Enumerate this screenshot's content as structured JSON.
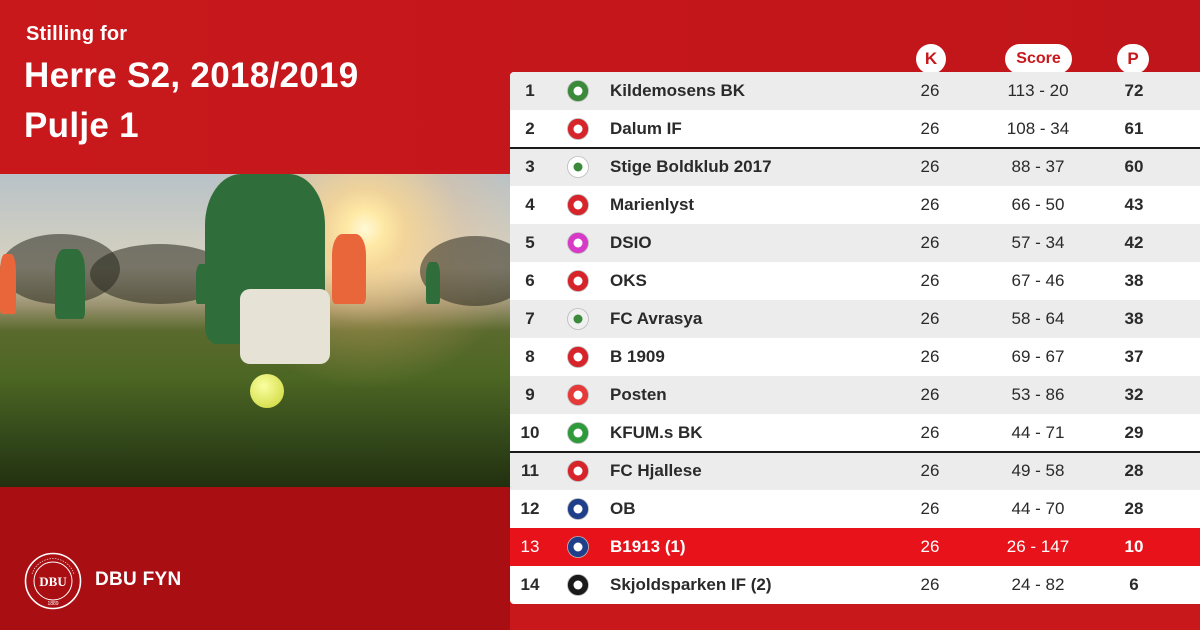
{
  "header": {
    "pre_title": "Stilling for",
    "title_line1": "Herre S2, 2018/2019",
    "title_line2": "Pulje 1"
  },
  "columns": {
    "k": "K",
    "score": "Score",
    "p": "P"
  },
  "footer": {
    "brand": "DBU FYN",
    "logo_text_top": "DANSK BOLDSPIL-UNION",
    "logo_text_mid": "DBU",
    "logo_text_bottom": "1889"
  },
  "colors": {
    "brand_red": "#c8181c",
    "relegation_row": "#e8131a",
    "alt_row": "#ececec"
  },
  "standings": [
    {
      "pos": "1",
      "team": "Kildemosens BK",
      "k": "26",
      "score": "113 - 20",
      "p": "72",
      "crest": "kildemosens-crest"
    },
    {
      "pos": "2",
      "team": "Dalum IF",
      "k": "26",
      "score": "108 - 34",
      "p": "61",
      "crest": "dalum-crest"
    },
    {
      "pos": "3",
      "team": "Stige Boldklub 2017",
      "k": "26",
      "score": "88 - 37",
      "p": "60",
      "crest": "stige-crest"
    },
    {
      "pos": "4",
      "team": "Marienlyst",
      "k": "26",
      "score": "66 - 50",
      "p": "43",
      "crest": "marienlyst-crest"
    },
    {
      "pos": "5",
      "team": "DSIO",
      "k": "26",
      "score": "57 - 34",
      "p": "42",
      "crest": "dsio-crest"
    },
    {
      "pos": "6",
      "team": "OKS",
      "k": "26",
      "score": "67 - 46",
      "p": "38",
      "crest": "oks-crest"
    },
    {
      "pos": "7",
      "team": "FC Avrasya",
      "k": "26",
      "score": "58 - 64",
      "p": "38",
      "crest": "avrasya-crest"
    },
    {
      "pos": "8",
      "team": "B 1909",
      "k": "26",
      "score": "69 - 67",
      "p": "37",
      "crest": "b1909-crest"
    },
    {
      "pos": "9",
      "team": "Posten",
      "k": "26",
      "score": "53 - 86",
      "p": "32",
      "crest": "posten-crest"
    },
    {
      "pos": "10",
      "team": "KFUM.s BK",
      "k": "26",
      "score": "44 - 71",
      "p": "29",
      "crest": "kfum-crest"
    },
    {
      "pos": "11",
      "team": "FC Hjallese",
      "k": "26",
      "score": "49 - 58",
      "p": "28",
      "crest": "hjallese-crest"
    },
    {
      "pos": "12",
      "team": "OB",
      "k": "26",
      "score": "44 - 70",
      "p": "28",
      "crest": "ob-crest"
    },
    {
      "pos": "13",
      "team": "B1913 (1)",
      "k": "26",
      "score": "26 - 147",
      "p": "10",
      "crest": "b1913-crest"
    },
    {
      "pos": "14",
      "team": "Skjoldsparken IF (2)",
      "k": "26",
      "score": "24 - 82",
      "p": "6",
      "crest": "skjoldsparken-crest"
    }
  ]
}
